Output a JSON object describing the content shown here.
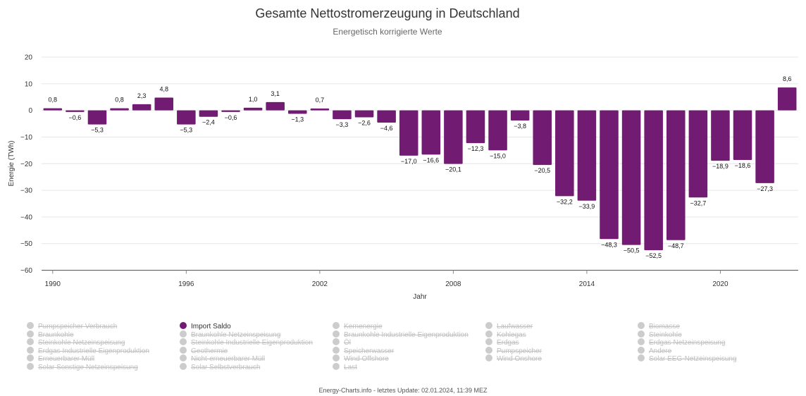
{
  "chart_data": {
    "type": "bar",
    "title": "Gesamte Nettostromerzeugung in Deutschland",
    "subtitle": "Energetisch korrigierte Werte",
    "xlabel": "Jahr",
    "ylabel": "Energie (TWh)",
    "ylim": [
      -60,
      20
    ],
    "yticks": [
      20,
      10,
      0,
      -10,
      -20,
      -30,
      -40,
      -50,
      -60
    ],
    "xtick_labels": [
      "1990",
      "1996",
      "2002",
      "2008",
      "2014",
      "2020"
    ],
    "grid": true,
    "color": "#711B73",
    "categories": [
      1990,
      1991,
      1992,
      1993,
      1994,
      1995,
      1996,
      1997,
      1998,
      1999,
      2000,
      2001,
      2002,
      2003,
      2004,
      2005,
      2006,
      2007,
      2008,
      2009,
      2010,
      2011,
      2012,
      2013,
      2014,
      2015,
      2016,
      2017,
      2018,
      2019,
      2020,
      2021,
      2022,
      2023
    ],
    "series": [
      {
        "name": "Import Saldo",
        "values": [
          0.8,
          -0.6,
          -5.3,
          0.8,
          2.3,
          4.8,
          -5.3,
          -2.4,
          -0.6,
          1.0,
          3.1,
          -1.3,
          0.7,
          -3.3,
          -2.6,
          -4.6,
          -17.0,
          -16.6,
          -20.1,
          -12.3,
          -15.0,
          -3.8,
          -20.5,
          -32.2,
          -33.9,
          -48.3,
          -50.5,
          -52.5,
          -48.7,
          -32.7,
          -18.9,
          -18.6,
          -27.3,
          8.6
        ],
        "labels": [
          "0,8",
          "−0,6",
          "−5,3",
          "0,8",
          "2,3",
          "4,8",
          "−5,3",
          "−2,4",
          "−0,6",
          "1,0",
          "3,1",
          "−1,3",
          "0,7",
          "−3,3",
          "−2,6",
          "−4,6",
          "−17,0",
          "−16,6",
          "−20,1",
          "−12,3",
          "−15,0",
          "−3,8",
          "−20,5",
          "−32,2",
          "−33,9",
          "−48,3",
          "−50,5",
          "−52,5",
          "−48,7",
          "−32,7",
          "−18,9",
          "−18,6",
          "−27,3",
          "8,6"
        ]
      }
    ]
  },
  "legend": {
    "columns": [
      [
        {
          "label": "Pumpspeicher Verbrauch",
          "active": false
        },
        {
          "label": "Braunkohle",
          "active": false
        },
        {
          "label": "Steinkohle Netzeinspeisung",
          "active": false
        },
        {
          "label": "Erdgas Industrielle Eigenproduktion",
          "active": false
        },
        {
          "label": "Erneuerbarer Müll",
          "active": false
        },
        {
          "label": "Solar Sonstige Netzeinspeisung",
          "active": false
        }
      ],
      [
        {
          "label": "Import Saldo",
          "active": true
        },
        {
          "label": "Braunkohle Netzeinspeisung",
          "active": false
        },
        {
          "label": "Steinkohle Industrielle Eigenproduktion",
          "active": false
        },
        {
          "label": "Geothermie",
          "active": false
        },
        {
          "label": "Nicht-erneuerbarer Müll",
          "active": false
        },
        {
          "label": "Solar Selbstverbrauch",
          "active": false
        }
      ],
      [
        {
          "label": "Kernenergie",
          "active": false
        },
        {
          "label": "Braunkohle Industrielle Eigenproduktion",
          "active": false
        },
        {
          "label": "Öl",
          "active": false
        },
        {
          "label": "Speicherwasser",
          "active": false
        },
        {
          "label": "Wind Offshore",
          "active": false
        },
        {
          "label": "Last",
          "active": false
        }
      ],
      [
        {
          "label": "Laufwasser",
          "active": false
        },
        {
          "label": "Kohlegas",
          "active": false
        },
        {
          "label": "Erdgas",
          "active": false
        },
        {
          "label": "Pumpspeicher",
          "active": false
        },
        {
          "label": "Wind Onshore",
          "active": false
        }
      ],
      [
        {
          "label": "Biomasse",
          "active": false
        },
        {
          "label": "Steinkohle",
          "active": false
        },
        {
          "label": "Erdgas Netzeinspeisung",
          "active": false
        },
        {
          "label": "Andere",
          "active": false
        },
        {
          "label": "Solar EEG-Netzeinspeisung",
          "active": false
        }
      ]
    ]
  },
  "footer": "Energy-Charts.info - letztes Update: 02.01.2024, 11:39 MEZ"
}
